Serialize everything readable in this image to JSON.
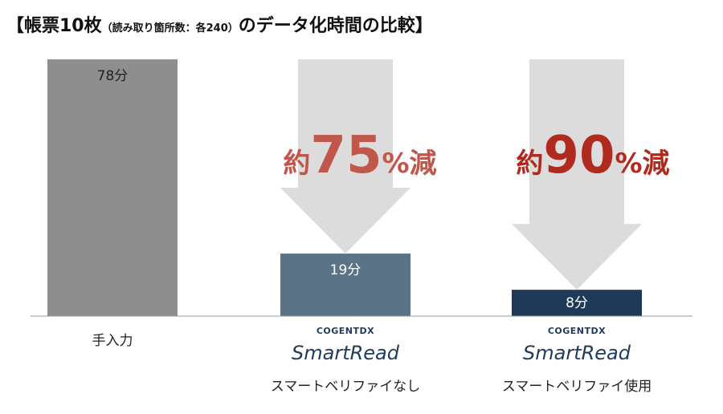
{
  "title": {
    "prefix": "【帳票10枚",
    "note": "（読み取り箇所数：各240）",
    "suffix": "のデータ化時間の比較】"
  },
  "chart_data": {
    "type": "bar",
    "categories": [
      "手入力",
      "スマートベリファイなし",
      "スマートベリファイ使用"
    ],
    "values": [
      78,
      19,
      8
    ],
    "value_labels": [
      "78分",
      "19分",
      "8分"
    ],
    "unit": "分",
    "colors": [
      "#8e8e8e",
      "#5a7386",
      "#1f3a56"
    ],
    "value_label_colors": [
      "#222222",
      "#ffffff",
      "#ffffff"
    ],
    "ylim": [
      0,
      80
    ],
    "grid": false,
    "legend": "none"
  },
  "brands": [
    {
      "top": "COGENTDX",
      "main": "SmartRead"
    },
    {
      "top": "COGENTDX",
      "main": "SmartRead"
    }
  ],
  "reductions": [
    {
      "prefix": "約",
      "number": "75",
      "suffix": "%減",
      "color": "#c0574a"
    },
    {
      "prefix": "約",
      "number": "90",
      "suffix": "%減",
      "color": "#b12a20"
    }
  ],
  "arrow_color": "#dcdcdc",
  "baseline_color": "#9a9a9a"
}
